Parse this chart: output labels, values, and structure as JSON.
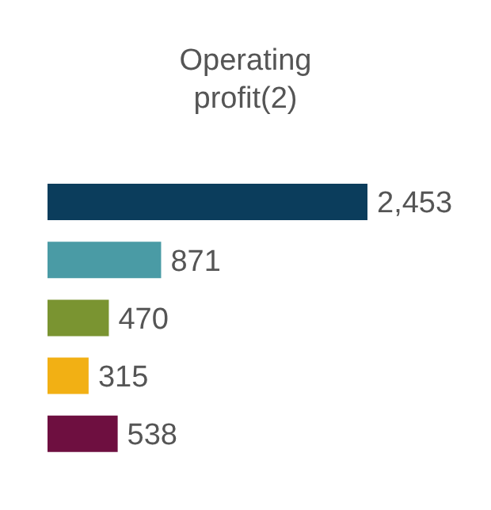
{
  "chart_data": {
    "type": "bar",
    "orientation": "horizontal",
    "title": "Operating profit(2)",
    "categories": [
      null,
      null,
      null,
      null,
      null
    ],
    "values": [
      2453,
      871,
      470,
      315,
      538
    ],
    "colors": [
      "#0b3d5c",
      "#4a9ba5",
      "#7a9431",
      "#f2b014",
      "#6e0f40"
    ],
    "value_labels": [
      "2,453",
      "871",
      "470",
      "315",
      "538"
    ]
  }
}
